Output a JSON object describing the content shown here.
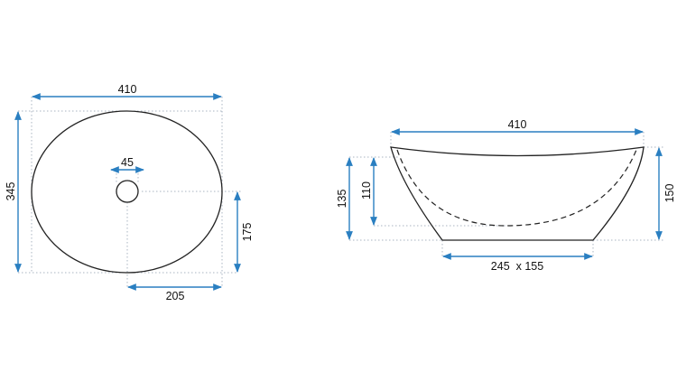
{
  "colors": {
    "dimension": "#2a7fc1",
    "outline": "#222222",
    "extension": "#a9b4c2"
  },
  "top_view": {
    "width_label": "410",
    "depth_label": "345",
    "drain_label": "45",
    "drain_offset_y_label": "175",
    "drain_offset_x_label": "205"
  },
  "side_view": {
    "width_label": "410",
    "outer_height_label": "135",
    "inner_depth_label": "110",
    "total_height_label": "150",
    "base_label": "245  x 155"
  }
}
